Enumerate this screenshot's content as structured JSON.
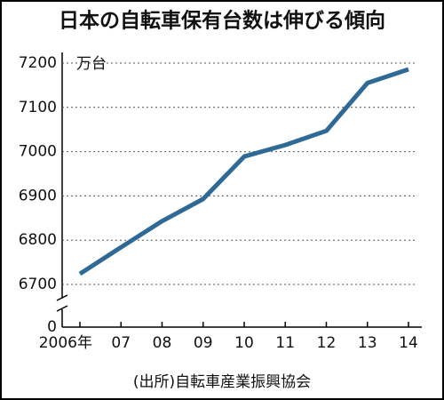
{
  "chart_data": {
    "type": "line",
    "title": "日本の自転車保有台数は伸びる傾向",
    "unit": "万台",
    "source": "(出所)自転車産業振興協会",
    "categories": [
      "2006年",
      "07",
      "08",
      "09",
      "10",
      "11",
      "12",
      "13",
      "14"
    ],
    "series": [
      {
        "name": "自転車保有台数",
        "color": "#2f6a96",
        "values": [
          6724,
          6784,
          6843,
          6893,
          6989,
          7015,
          7047,
          7155,
          7186
        ]
      }
    ],
    "ylim": [
      6700,
      7200
    ],
    "yticks": [
      0,
      6700,
      6800,
      6900,
      7000,
      7100,
      7200
    ],
    "axis_break": true,
    "grid": true
  }
}
